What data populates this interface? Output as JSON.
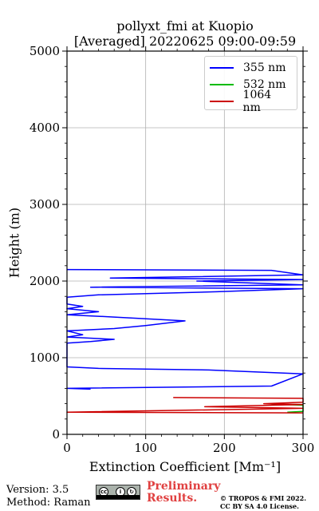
{
  "chart_data": {
    "type": "line",
    "title": "pollyxt_fmi at Kuopio",
    "subtitle": "[Averaged] 20220625 09:00-09:59",
    "xlabel": "Extinction Coefficient [Mm⁻¹]",
    "ylabel": "Height (m)",
    "xlim": [
      0,
      300
    ],
    "ylim": [
      0,
      5000
    ],
    "xticks": [
      "0",
      "100",
      "200",
      "300"
    ],
    "yticks": [
      "0",
      "1000",
      "2000",
      "3000",
      "4000",
      "5000"
    ],
    "grid": true,
    "legend_position": "top-right",
    "series": [
      {
        "name": "355 nm",
        "color": "#0000ff",
        "points": [
          [
            0,
            2150
          ],
          [
            260,
            2140
          ],
          [
            300,
            2080
          ],
          [
            55,
            2040
          ],
          [
            300,
            2020
          ],
          [
            165,
            2000
          ],
          [
            300,
            1950
          ],
          [
            30,
            1920
          ],
          [
            300,
            1900
          ],
          [
            190,
            1860
          ],
          [
            40,
            1820
          ],
          [
            0,
            1790
          ],
          [
            0,
            1700
          ],
          [
            20,
            1670
          ],
          [
            0,
            1640
          ],
          [
            40,
            1600
          ],
          [
            0,
            1560
          ],
          [
            60,
            1530
          ],
          [
            150,
            1480
          ],
          [
            100,
            1420
          ],
          [
            60,
            1380
          ],
          [
            0,
            1350
          ],
          [
            20,
            1300
          ],
          [
            0,
            1270
          ],
          [
            60,
            1240
          ],
          [
            30,
            1210
          ],
          [
            0,
            1190
          ],
          [
            0,
            880
          ],
          [
            40,
            860
          ],
          [
            180,
            840
          ],
          [
            300,
            790
          ],
          [
            260,
            630
          ],
          [
            0,
            600
          ],
          [
            30,
            590
          ]
        ]
      },
      {
        "name": "532 nm",
        "color": "#00bb00",
        "points": [
          [
            260,
            395
          ],
          [
            300,
            380
          ],
          [
            300,
            300
          ],
          [
            280,
            290
          ]
        ]
      },
      {
        "name": "1064 nm",
        "color": "#cc0000",
        "points": [
          [
            135,
            480
          ],
          [
            300,
            470
          ],
          [
            300,
            420
          ],
          [
            250,
            400
          ],
          [
            300,
            390
          ],
          [
            175,
            360
          ],
          [
            300,
            340
          ],
          [
            0,
            290
          ],
          [
            300,
            280
          ]
        ]
      }
    ]
  },
  "footer": {
    "version": "Version: 3.5",
    "method": "Method: Raman",
    "preliminary": "Preliminary",
    "results": "Results.",
    "copyright_line1": "© TROPOS & FMI 2022.",
    "copyright_line2": "CC BY SA 4.0 License."
  }
}
